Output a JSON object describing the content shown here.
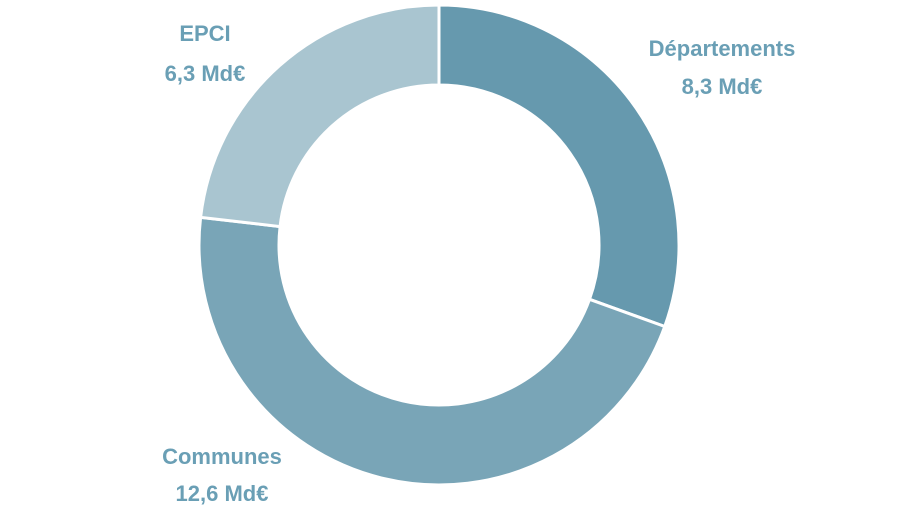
{
  "chart_data": {
    "type": "donut",
    "categories": [
      "Départements",
      "Communes",
      "EPCI"
    ],
    "values": [
      8.3,
      12.6,
      6.3
    ],
    "value_labels": [
      "8,3 Md€",
      "12,6 Md€",
      "6,3 Md€"
    ],
    "colors": [
      "#6699ae",
      "#79a5b7",
      "#a9c5d0"
    ]
  }
}
